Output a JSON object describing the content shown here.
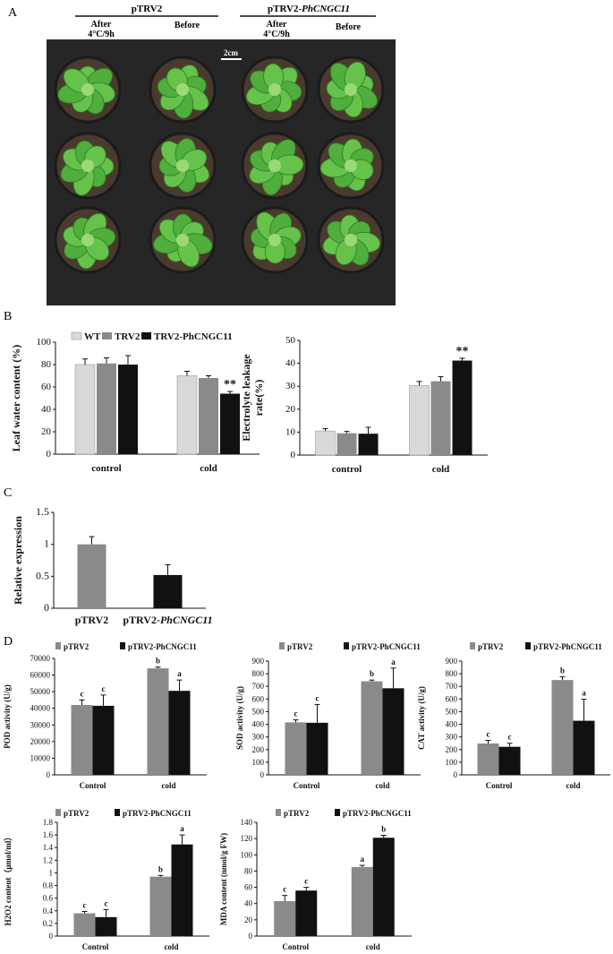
{
  "colors": {
    "black": "#111111",
    "grey": "#8a8a8a",
    "light_grey": "#d9d9d9",
    "photo_bg": "#2a2a2a",
    "leaf": "#4caa3a",
    "leaf_light": "#8fd06a"
  },
  "panels": {
    "A": "A",
    "B": "B",
    "C": "C",
    "D": "D"
  },
  "photo": {
    "group1": "pTRV2",
    "group2_prefix": "pTRV2-",
    "group2_gene": "PhCNGC11",
    "after_line1": "After",
    "after_line2": "4°C/9h",
    "before": "Before",
    "scale": "2cm"
  },
  "chart_data": [
    {
      "id": "B1",
      "type": "bar",
      "ylabel": "Leaf water content (%)",
      "ylim": [
        0,
        100
      ],
      "yticks": [
        0,
        20,
        40,
        60,
        80,
        100
      ],
      "categories": [
        "control",
        "cold"
      ],
      "legend": [
        "WT",
        "TRV2",
        "TRV2-PhCNGC11"
      ],
      "series": [
        {
          "name": "WT",
          "color": "#d9d9d9",
          "values": [
            80,
            70
          ],
          "errors": [
            5,
            4
          ]
        },
        {
          "name": "TRV2",
          "color": "#8a8a8a",
          "values": [
            81,
            68
          ],
          "errors": [
            5,
            2
          ]
        },
        {
          "name": "TRV2-PhCNGC11",
          "color": "#111111",
          "values": [
            80,
            54
          ],
          "errors": [
            8,
            2
          ]
        }
      ],
      "annotations": [
        [
          "",
          "",
          ""
        ],
        [
          "",
          "",
          "**"
        ]
      ]
    },
    {
      "id": "B2",
      "type": "bar",
      "ylabel": [
        "Electrolyte leakage",
        "rate(%)"
      ],
      "ylim": [
        0,
        50
      ],
      "yticks": [
        0,
        10,
        20,
        30,
        40,
        50
      ],
      "categories": [
        "control",
        "cold"
      ],
      "series": [
        {
          "name": "WT",
          "color": "#d9d9d9",
          "values": [
            10.5,
            30.3
          ],
          "errors": [
            1,
            1.8
          ]
        },
        {
          "name": "TRV2",
          "color": "#8a8a8a",
          "values": [
            9.5,
            32.2
          ],
          "errors": [
            0.8,
            2
          ]
        },
        {
          "name": "TRV2-PhCNGC11",
          "color": "#111111",
          "values": [
            9.3,
            41.2
          ],
          "errors": [
            2.8,
            1
          ]
        }
      ],
      "annotations": [
        [
          "",
          "",
          ""
        ],
        [
          "",
          "",
          "**"
        ]
      ]
    },
    {
      "id": "C",
      "type": "bar",
      "ylabel": "Relative expression",
      "ylim": [
        0,
        1.5
      ],
      "yticks": [
        0,
        0.5,
        1,
        1.5
      ],
      "ytick_labels": [
        "0",
        "0.5",
        "1",
        "1.5"
      ],
      "categories": [
        "pTRV2",
        "pTRV2-PhCNGC11"
      ],
      "category_prefix": [
        "pTRV2",
        "pTRV2-"
      ],
      "category_italic": [
        "",
        "PhCNGC11"
      ],
      "series": [
        {
          "name": "",
          "colors": [
            "#8a8a8a",
            "#111111"
          ],
          "values": [
            1.0,
            0.52
          ],
          "errors": [
            0.12,
            0.16
          ]
        }
      ],
      "annotations": [
        [
          "",
          "*"
        ]
      ]
    },
    {
      "id": "D1",
      "type": "bar",
      "ylabel": "POD activity (U/g)",
      "ylim": [
        0,
        70000
      ],
      "yticks": [
        0,
        10000,
        20000,
        30000,
        40000,
        50000,
        60000,
        70000
      ],
      "categories": [
        "Control",
        "cold"
      ],
      "legend": [
        "pTRV2",
        "pTRV2-PhCNGC11"
      ],
      "series": [
        {
          "name": "pTRV2",
          "color": "#8a8a8a",
          "values": [
            42000,
            64000
          ],
          "errors": [
            3000,
            800
          ]
        },
        {
          "name": "pTRV2-PhCNGC11",
          "color": "#111111",
          "values": [
            41500,
            50500
          ],
          "errors": [
            6500,
            6500
          ]
        }
      ],
      "annotations": [
        [
          "c",
          "c"
        ],
        [
          "b",
          "a"
        ]
      ]
    },
    {
      "id": "D2",
      "type": "bar",
      "ylabel": "SOD activity (U/g)",
      "ylim": [
        0,
        900
      ],
      "yticks": [
        0,
        100,
        200,
        300,
        400,
        500,
        600,
        700,
        800,
        900
      ],
      "categories": [
        "Control",
        "cold"
      ],
      "legend": [
        "pTRV2",
        "pTRV2-PhCNGC11"
      ],
      "series": [
        {
          "name": "pTRV2",
          "color": "#8a8a8a",
          "values": [
            415,
            740
          ],
          "errors": [
            20,
            10
          ]
        },
        {
          "name": "pTRV2-PhCNGC11",
          "color": "#111111",
          "values": [
            412,
            685
          ],
          "errors": [
            145,
            160
          ]
        }
      ],
      "annotations": [
        [
          "c",
          "c"
        ],
        [
          "b",
          "a"
        ]
      ]
    },
    {
      "id": "D3",
      "type": "bar",
      "ylabel": "CAT activity (U/g)",
      "ylim": [
        0,
        900
      ],
      "yticks": [
        0,
        100,
        200,
        300,
        400,
        500,
        600,
        700,
        800,
        900
      ],
      "categories": [
        "Control",
        "cold"
      ],
      "legend": [
        "pTRV2",
        "pTRV2-PhCNGC11"
      ],
      "series": [
        {
          "name": "pTRV2",
          "color": "#8a8a8a",
          "values": [
            248,
            750
          ],
          "errors": [
            25,
            25
          ]
        },
        {
          "name": "pTRV2-PhCNGC11",
          "color": "#111111",
          "values": [
            222,
            428
          ],
          "errors": [
            28,
            170
          ]
        }
      ],
      "annotations": [
        [
          "c",
          "c"
        ],
        [
          "b",
          "a"
        ]
      ]
    },
    {
      "id": "D4",
      "type": "bar",
      "ylabel": "H2O2 content（μmol/ml）",
      "ylim": [
        0,
        1.8
      ],
      "yticks": [
        0,
        0.2,
        0.4,
        0.6,
        0.8,
        1,
        1.2,
        1.4,
        1.6,
        1.8
      ],
      "ytick_labels": [
        "0",
        "0.2",
        "0.4",
        "0.6",
        "0.8",
        "1",
        "1.2",
        "1.4",
        "1.6",
        "1.8"
      ],
      "categories": [
        "Control",
        "cold"
      ],
      "legend": [
        "pTRV2",
        "pTRV2-PhCNGC11"
      ],
      "series": [
        {
          "name": "pTRV2",
          "color": "#8a8a8a",
          "values": [
            0.36,
            0.94
          ],
          "errors": [
            0.03,
            0.02
          ]
        },
        {
          "name": "pTRV2-PhCNGC11",
          "color": "#111111",
          "values": [
            0.3,
            1.45
          ],
          "errors": [
            0.12,
            0.15
          ]
        }
      ],
      "annotations": [
        [
          "c",
          "c"
        ],
        [
          "b",
          "a"
        ]
      ]
    },
    {
      "id": "D5",
      "type": "bar",
      "ylabel": "MDA content (nmol/g FW)",
      "ylim": [
        0,
        140
      ],
      "yticks": [
        0,
        20,
        40,
        60,
        80,
        100,
        120,
        140
      ],
      "categories": [
        "Control",
        "cold"
      ],
      "legend": [
        "pTRV2",
        "pTRV2-PhCNGC11"
      ],
      "series": [
        {
          "name": "pTRV2",
          "color": "#8a8a8a",
          "values": [
            43,
            85
          ],
          "errors": [
            7,
            2
          ]
        },
        {
          "name": "pTRV2-PhCNGC11",
          "color": "#111111",
          "values": [
            56,
            121
          ],
          "errors": [
            4,
            3
          ]
        }
      ],
      "annotations": [
        [
          "c",
          "c"
        ],
        [
          "a",
          "b"
        ]
      ]
    }
  ]
}
